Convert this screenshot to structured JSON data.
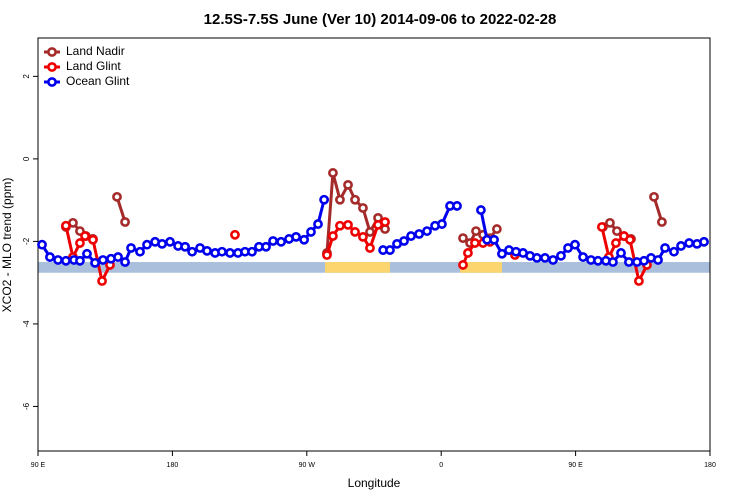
{
  "chart_data": {
    "type": "line",
    "title": "12.5S-7.5S June (Ver 10)   2014-09-06 to 2022-02-28",
    "xlabel": "Longitude",
    "ylabel": "XCO2 - MLO trend (ppm)",
    "xlim": [
      90,
      540
    ],
    "ylim": [
      -7.08,
      2.93
    ],
    "xticks": [
      {
        "value": 90,
        "label": "90 E"
      },
      180,
      {
        "value": 270,
        "label": "90 W"
      },
      {
        "value": 360,
        "label": "0"
      },
      {
        "value": 450,
        "label": "90 E"
      },
      {
        "value": 540,
        "label": "180"
      }
    ],
    "yticks": [
      2,
      0,
      -2,
      -4,
      -6
    ],
    "legend": "top-left",
    "background_band": {
      "ylim": [
        -2.76,
        -2.5
      ],
      "color": "#a9bfdc"
    },
    "highlight_bands": [
      {
        "xlim": [
          282.2,
          325.7
        ],
        "color": "#fdd56e"
      },
      {
        "xlim": [
          372.6,
          400.7
        ],
        "color": "#fdd56e"
      }
    ],
    "series": [
      {
        "name": "Land Nadir",
        "color": "#a52a2a",
        "x": [
          108.7,
          113.4,
          118.1,
          122.1,
          126.8,
          null,
          142.9,
          148.3,
          null,
          283.5,
          287.5,
          292.2,
          297.6,
          302.3,
          307.6,
          312.3,
          317.7,
          322.4,
          null,
          374.6,
          379.3,
          383.3,
          388.0,
          392.7,
          397.3,
          null,
          468.3,
          473.0,
          477.7,
          482.4,
          487.1,
          null,
          502.5,
          507.8
        ],
        "values": [
          -1.65,
          -1.55,
          -1.75,
          -1.87,
          -1.94,
          null,
          -0.92,
          -1.53,
          null,
          -2.28,
          -0.34,
          -0.99,
          -0.63,
          -0.99,
          -1.19,
          -1.77,
          -1.43,
          -1.7,
          null,
          -1.92,
          -2.04,
          -1.75,
          -1.84,
          -1.92,
          -1.7,
          null,
          -1.65,
          -1.55,
          -1.75,
          -1.87,
          -1.94,
          null,
          -0.92,
          -1.53
        ]
      },
      {
        "name": "Land Glint",
        "color": "#ee0000",
        "x": [
          108.7,
          113.4,
          118.1,
          121.5,
          126.8,
          132.9,
          138.2,
          null,
          221.9,
          null,
          283.5,
          287.5,
          292.2,
          297.6,
          302.3,
          307.6,
          312.3,
          317.7,
          322.4,
          null,
          374.6,
          377.9,
          382.6,
          388.0,
          392.7,
          null,
          409.4,
          null,
          467.6,
          472.3,
          477.0,
          482.4,
          486.4,
          492.4,
          497.8
        ],
        "values": [
          -1.62,
          -2.38,
          -2.04,
          -1.87,
          -1.96,
          -2.96,
          -2.57,
          null,
          -1.84,
          null,
          -2.33,
          -1.87,
          -1.62,
          -1.6,
          -1.77,
          -1.89,
          -2.16,
          -1.6,
          -1.53,
          null,
          -2.57,
          -2.28,
          -2.04,
          -2.04,
          -2.01,
          null,
          -2.33,
          null,
          -1.65,
          -2.38,
          -2.04,
          -1.87,
          -1.96,
          -2.96,
          -2.57
        ]
      },
      {
        "name": "Ocean Glint",
        "color": "#0000ee",
        "x": [
          92.7,
          98.0,
          103.4,
          108.7,
          114.1,
          118.1,
          122.8,
          128.2,
          133.5,
          138.9,
          143.6,
          148.3,
          152.3,
          158.3,
          163.0,
          168.4,
          173.1,
          178.4,
          183.8,
          188.5,
          193.2,
          198.5,
          203.2,
          208.6,
          213.2,
          218.6,
          223.9,
          228.6,
          233.3,
          238.0,
          242.7,
          247.4,
          252.8,
          258.1,
          262.8,
          268.2,
          272.8,
          277.5,
          281.6,
          null,
          321.1,
          325.7,
          330.4,
          335.1,
          339.8,
          345.2,
          350.5,
          355.9,
          360.5,
          365.9,
          370.6,
          null,
          386.6,
          390.7,
          395.4,
          400.7,
          405.4,
          410.1,
          414.8,
          419.5,
          424.1,
          429.5,
          434.9,
          440.2,
          444.9,
          449.6,
          455.0,
          460.3,
          465.0,
          470.3,
          475.0,
          480.4,
          485.7,
          491.1,
          495.8,
          500.5,
          505.2,
          509.9,
          515.9,
          520.6,
          526.0,
          531.3,
          536.0
        ],
        "values": [
          -2.08,
          -2.38,
          -2.45,
          -2.47,
          -2.45,
          -2.47,
          -2.3,
          -2.52,
          -2.45,
          -2.42,
          -2.38,
          -2.5,
          -2.16,
          -2.25,
          -2.08,
          -2.01,
          -2.06,
          -2.01,
          -2.11,
          -2.13,
          -2.25,
          -2.16,
          -2.23,
          -2.28,
          -2.25,
          -2.28,
          -2.28,
          -2.25,
          -2.25,
          -2.13,
          -2.13,
          -1.99,
          -2.01,
          -1.94,
          -1.89,
          -1.96,
          -1.77,
          -1.58,
          -0.99,
          null,
          -2.21,
          -2.21,
          -2.06,
          -1.99,
          -1.87,
          -1.82,
          -1.75,
          -1.62,
          -1.58,
          -1.14,
          -1.14,
          null,
          -1.24,
          -1.96,
          -1.96,
          -2.3,
          -2.21,
          -2.25,
          -2.28,
          -2.35,
          -2.4,
          -2.4,
          -2.45,
          -2.35,
          -2.16,
          -2.08,
          -2.38,
          -2.45,
          -2.47,
          -2.47,
          -2.5,
          -2.28,
          -2.5,
          -2.5,
          -2.47,
          -2.4,
          -2.45,
          -2.16,
          -2.25,
          -2.11,
          -2.04,
          -2.06,
          -2.01
        ]
      }
    ]
  }
}
